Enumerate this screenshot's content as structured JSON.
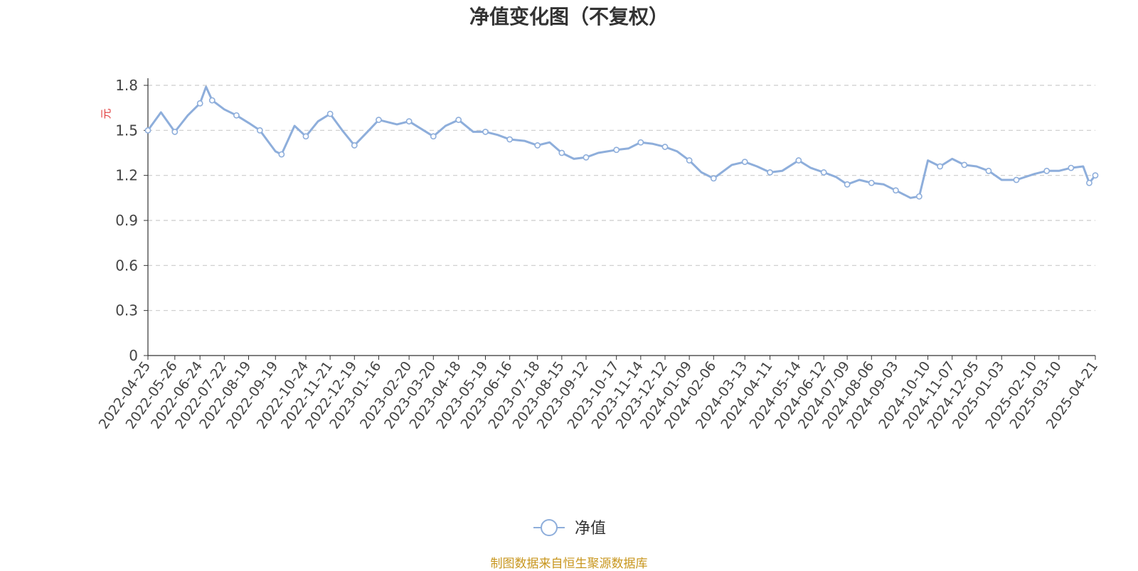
{
  "chart_data": {
    "type": "line",
    "title": "净值变化图（不复权）",
    "y_unit_label": "元",
    "ylim": [
      0,
      1.8
    ],
    "y_ticks": [
      "0",
      "0.3",
      "0.6",
      "0.9",
      "1.2",
      "1.5",
      "1.8"
    ],
    "grid": true,
    "legend_position": "bottom-center",
    "x_tick_labels": [
      "2022-04-25",
      "2022-05-26",
      "2022-06-24",
      "2022-07-22",
      "2022-08-19",
      "2022-09-19",
      "2022-10-24",
      "2022-11-21",
      "2022-12-19",
      "2023-01-16",
      "2023-02-20",
      "2023-03-20",
      "2023-04-18",
      "2023-05-19",
      "2023-06-16",
      "2023-07-18",
      "2023-08-15",
      "2023-09-12",
      "2023-10-17",
      "2023-11-14",
      "2023-12-12",
      "2024-01-09",
      "2024-02-06",
      "2024-03-13",
      "2024-04-11",
      "2024-05-14",
      "2024-06-12",
      "2024-07-09",
      "2024-08-06",
      "2024-09-03",
      "2024-10-10",
      "2024-11-07",
      "2024-12-05",
      "2025-01-03",
      "2025-02-10",
      "2025-03-10",
      "2025-04-21"
    ],
    "series": [
      {
        "name": "净值",
        "color": "#8eaedb",
        "marker": "hollow-circle",
        "x": [
          "2022-04-25",
          "2022-05-10",
          "2022-05-26",
          "2022-06-10",
          "2022-06-24",
          "2022-07-01",
          "2022-07-08",
          "2022-07-22",
          "2022-08-05",
          "2022-08-19",
          "2022-09-01",
          "2022-09-19",
          "2022-09-26",
          "2022-10-11",
          "2022-10-24",
          "2022-11-07",
          "2022-11-21",
          "2022-12-05",
          "2022-12-19",
          "2023-01-03",
          "2023-01-16",
          "2023-02-06",
          "2023-02-20",
          "2023-03-06",
          "2023-03-20",
          "2023-04-03",
          "2023-04-18",
          "2023-05-05",
          "2023-05-19",
          "2023-06-02",
          "2023-06-16",
          "2023-07-03",
          "2023-07-18",
          "2023-08-01",
          "2023-08-15",
          "2023-08-29",
          "2023-09-12",
          "2023-09-26",
          "2023-10-17",
          "2023-10-31",
          "2023-11-14",
          "2023-11-28",
          "2023-12-12",
          "2023-12-26",
          "2024-01-09",
          "2024-01-23",
          "2024-02-06",
          "2024-02-27",
          "2024-03-13",
          "2024-03-27",
          "2024-04-11",
          "2024-04-25",
          "2024-05-14",
          "2024-05-28",
          "2024-06-12",
          "2024-06-26",
          "2024-07-09",
          "2024-07-23",
          "2024-08-06",
          "2024-08-20",
          "2024-09-03",
          "2024-09-20",
          "2024-09-30",
          "2024-10-10",
          "2024-10-24",
          "2024-11-07",
          "2024-11-21",
          "2024-12-05",
          "2024-12-19",
          "2025-01-03",
          "2025-01-20",
          "2025-02-10",
          "2025-02-24",
          "2025-03-10",
          "2025-03-24",
          "2025-04-07",
          "2025-04-14",
          "2025-04-21"
        ],
        "values": [
          1.5,
          1.62,
          1.49,
          1.6,
          1.68,
          1.79,
          1.7,
          1.64,
          1.6,
          1.55,
          1.5,
          1.36,
          1.34,
          1.53,
          1.46,
          1.56,
          1.61,
          1.5,
          1.4,
          1.49,
          1.57,
          1.54,
          1.56,
          1.51,
          1.46,
          1.53,
          1.57,
          1.49,
          1.49,
          1.47,
          1.44,
          1.43,
          1.4,
          1.42,
          1.35,
          1.31,
          1.32,
          1.35,
          1.37,
          1.38,
          1.42,
          1.41,
          1.39,
          1.36,
          1.3,
          1.22,
          1.18,
          1.27,
          1.29,
          1.26,
          1.22,
          1.23,
          1.3,
          1.25,
          1.22,
          1.19,
          1.14,
          1.17,
          1.15,
          1.14,
          1.1,
          1.05,
          1.06,
          1.3,
          1.26,
          1.31,
          1.27,
          1.26,
          1.23,
          1.17,
          1.17,
          1.21,
          1.23,
          1.23,
          1.25,
          1.26,
          1.15,
          1.2
        ]
      }
    ],
    "source_note": "制图数据来自恒生聚源数据库"
  }
}
